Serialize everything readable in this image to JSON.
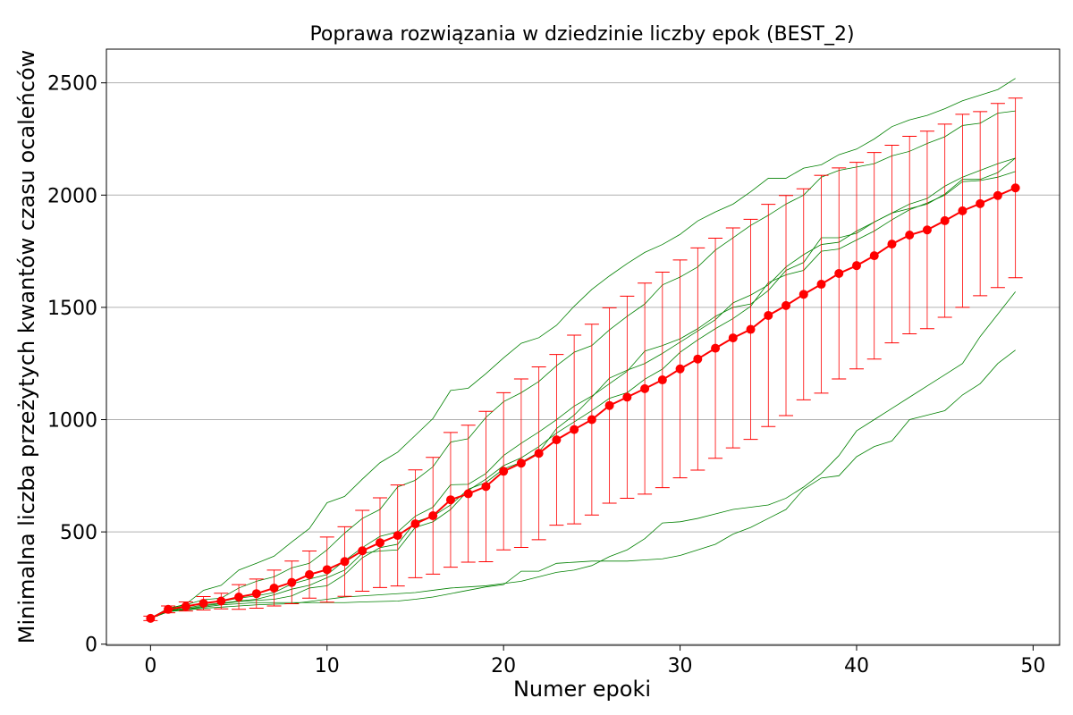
{
  "chart_data": {
    "type": "line",
    "title": "Poprawa rozwiązania w dziedzinie liczby epok (BEST_2)",
    "xlabel": "Numer epoki",
    "ylabel": "Minimalna liczba przeżytych kwantów czasu ocaleńców",
    "xlim": [
      -2.5,
      51.5
    ],
    "ylim": [
      -5,
      2650
    ],
    "xticks": [
      0,
      10,
      20,
      30,
      40,
      50
    ],
    "yticks": [
      0,
      500,
      1000,
      1500,
      2000,
      2500
    ],
    "grid": "horizontal",
    "colors": {
      "mean": "#ff0000",
      "runs": "#008000",
      "grid": "#b0b0b0"
    },
    "x": [
      0,
      1,
      2,
      3,
      4,
      5,
      6,
      7,
      8,
      9,
      10,
      11,
      12,
      13,
      14,
      15,
      16,
      17,
      18,
      19,
      20,
      21,
      22,
      23,
      24,
      25,
      26,
      27,
      28,
      29,
      30,
      31,
      32,
      33,
      34,
      35,
      36,
      37,
      38,
      39,
      40,
      41,
      42,
      43,
      44,
      45,
      46,
      47,
      48,
      49
    ],
    "mean": [
      115,
      155,
      168,
      182,
      192,
      210,
      225,
      250,
      275,
      310,
      332,
      368,
      416,
      452,
      484,
      536,
      572,
      643,
      670,
      702,
      770,
      806,
      850,
      910,
      956,
      1000,
      1063,
      1100,
      1138,
      1177,
      1226,
      1270,
      1318,
      1364,
      1402,
      1464,
      1508,
      1558,
      1603,
      1651,
      1686,
      1730,
      1782,
      1822,
      1845,
      1886,
      1930,
      1962,
      1998,
      2032
    ],
    "error": [
      10,
      15,
      20,
      30,
      35,
      55,
      65,
      80,
      95,
      105,
      145,
      155,
      180,
      200,
      225,
      240,
      260,
      300,
      305,
      335,
      350,
      375,
      385,
      380,
      420,
      425,
      435,
      450,
      470,
      480,
      485,
      495,
      490,
      490,
      490,
      495,
      490,
      470,
      485,
      470,
      460,
      460,
      440,
      440,
      440,
      430,
      430,
      410,
      410,
      400
    ],
    "runs": [
      [
        115,
        158,
        178,
        240,
        262,
        330,
        360,
        392,
        455,
        515,
        630,
        658,
        735,
        808,
        855,
        930,
        1005,
        1130,
        1140,
        1205,
        1275,
        1340,
        1365,
        1420,
        1505,
        1580,
        1640,
        1695,
        1745,
        1780,
        1825,
        1885,
        1925,
        1960,
        2015,
        2075,
        2075,
        2120,
        2135,
        2180,
        2205,
        2250,
        2305,
        2335,
        2355,
        2385,
        2420,
        2445,
        2470,
        2520
      ],
      [
        115,
        160,
        175,
        198,
        205,
        250,
        280,
        300,
        340,
        360,
        420,
        495,
        560,
        600,
        700,
        730,
        790,
        900,
        915,
        1010,
        1080,
        1120,
        1170,
        1240,
        1300,
        1330,
        1400,
        1460,
        1515,
        1600,
        1635,
        1680,
        1755,
        1810,
        1865,
        1910,
        1960,
        2000,
        2080,
        2110,
        2125,
        2140,
        2175,
        2195,
        2230,
        2260,
        2310,
        2320,
        2365,
        2375
      ],
      [
        115,
        150,
        165,
        185,
        190,
        205,
        215,
        230,
        268,
        290,
        310,
        372,
        430,
        480,
        500,
        570,
        610,
        710,
        712,
        760,
        840,
        895,
        945,
        1000,
        1060,
        1105,
        1160,
        1215,
        1305,
        1330,
        1360,
        1405,
        1460,
        1500,
        1515,
        1575,
        1665,
        1700,
        1810,
        1810,
        1830,
        1880,
        1920,
        1940,
        1960,
        2005,
        2070,
        2070,
        2100,
        2165
      ],
      [
        115,
        148,
        160,
        175,
        182,
        192,
        200,
        220,
        245,
        262,
        296,
        330,
        405,
        415,
        420,
        520,
        545,
        600,
        685,
        735,
        795,
        830,
        880,
        940,
        990,
        1040,
        1095,
        1120,
        1180,
        1225,
        1300,
        1355,
        1405,
        1450,
        1505,
        1610,
        1645,
        1665,
        1750,
        1760,
        1800,
        1840,
        1890,
        1935,
        1965,
        2000,
        2060,
        2065,
        2080,
        2105
      ],
      [
        115,
        145,
        155,
        170,
        180,
        190,
        195,
        200,
        215,
        250,
        260,
        310,
        385,
        430,
        445,
        545,
        570,
        620,
        690,
        720,
        780,
        810,
        855,
        960,
        1020,
        1100,
        1185,
        1220,
        1250,
        1295,
        1345,
        1395,
        1445,
        1520,
        1555,
        1600,
        1680,
        1735,
        1780,
        1790,
        1840,
        1880,
        1920,
        1960,
        1985,
        2040,
        2080,
        2110,
        2140,
        2165
      ],
      [
        115,
        145,
        155,
        165,
        175,
        180,
        185,
        185,
        185,
        185,
        185,
        185,
        188,
        190,
        192,
        200,
        210,
        225,
        240,
        255,
        265,
        325,
        325,
        360,
        365,
        370,
        370,
        370,
        375,
        380,
        395,
        420,
        445,
        490,
        520,
        560,
        600,
        690,
        740,
        750,
        835,
        880,
        905,
        1000,
        1020,
        1040,
        1110,
        1160,
        1250,
        1310
      ],
      [
        115,
        145,
        152,
        160,
        165,
        170,
        175,
        178,
        180,
        190,
        200,
        210,
        215,
        220,
        225,
        230,
        240,
        250,
        255,
        260,
        270,
        280,
        300,
        320,
        330,
        350,
        390,
        420,
        470,
        540,
        545,
        560,
        580,
        600,
        610,
        620,
        650,
        700,
        760,
        840,
        950,
        1000,
        1050,
        1100,
        1150,
        1200,
        1250,
        1370,
        1470,
        1570
      ]
    ]
  }
}
